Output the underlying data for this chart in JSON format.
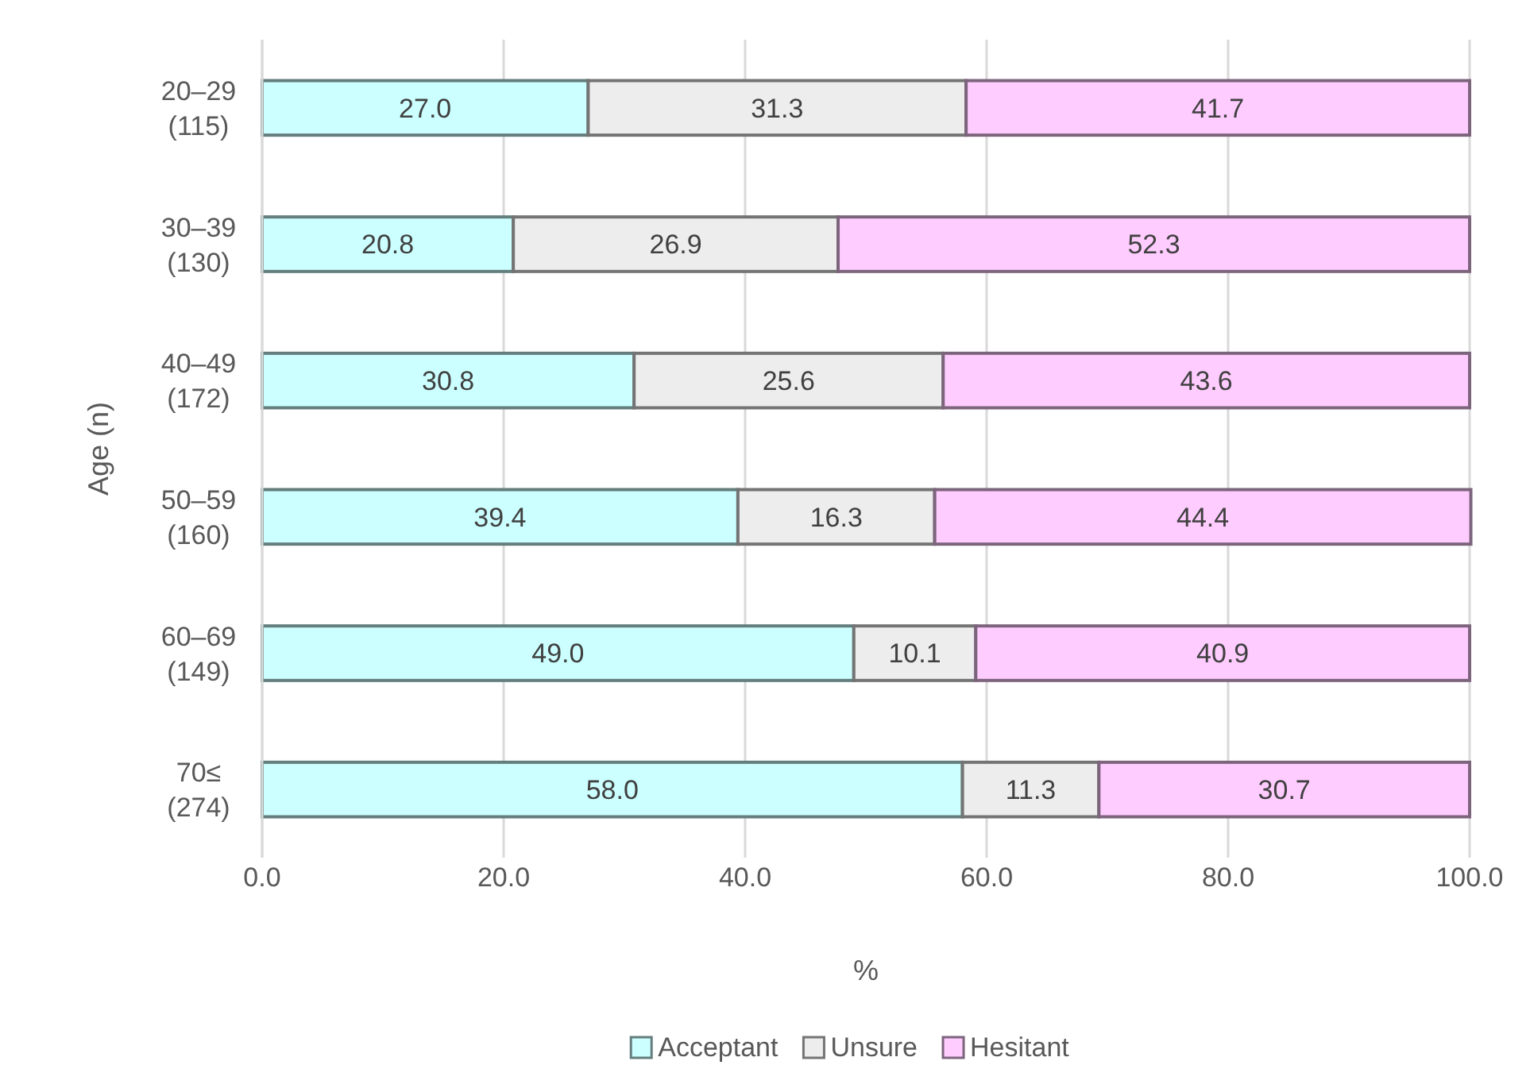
{
  "chart_data": {
    "type": "bar",
    "orientation": "horizontal",
    "stacked": true,
    "xlabel": "%",
    "ylabel": "Age (n)",
    "categories": [
      "20–29\n(115)",
      "30–39\n(130)",
      "40–49\n(172)",
      "50–59\n(160)",
      "60–69\n(149)",
      "70≤\n(274)"
    ],
    "series": [
      {
        "name": "Acceptant",
        "color": "#ccffff",
        "values": [
          27.0,
          20.8,
          30.8,
          39.4,
          49.0,
          58.0
        ],
        "value_labels": [
          "27.0",
          "20.8",
          "30.8",
          "39.4",
          "49.0",
          "58.0"
        ]
      },
      {
        "name": "Unsure",
        "color": "#ededed",
        "values": [
          31.3,
          26.9,
          25.6,
          16.3,
          10.1,
          11.3
        ],
        "value_labels": [
          "31.3",
          "26.9",
          "25.6",
          "16.3",
          "10.1",
          "11.3"
        ]
      },
      {
        "name": "Hesitant",
        "color": "#ffccff",
        "values": [
          41.7,
          52.3,
          43.6,
          44.4,
          40.9,
          30.7
        ],
        "value_labels": [
          "41.7",
          "52.3",
          "43.6",
          "44.4",
          "40.9",
          "30.7"
        ]
      }
    ],
    "xlim": [
      0,
      100
    ],
    "xticks": [
      {
        "value": 0,
        "label": "0.0"
      },
      {
        "value": 20,
        "label": "20.0"
      },
      {
        "value": 40,
        "label": "40.0"
      },
      {
        "value": 60,
        "label": "60.0"
      },
      {
        "value": 80,
        "label": "80.0"
      },
      {
        "value": 100,
        "label": "100.0"
      }
    ],
    "grid": "x",
    "legend": "bottom"
  }
}
